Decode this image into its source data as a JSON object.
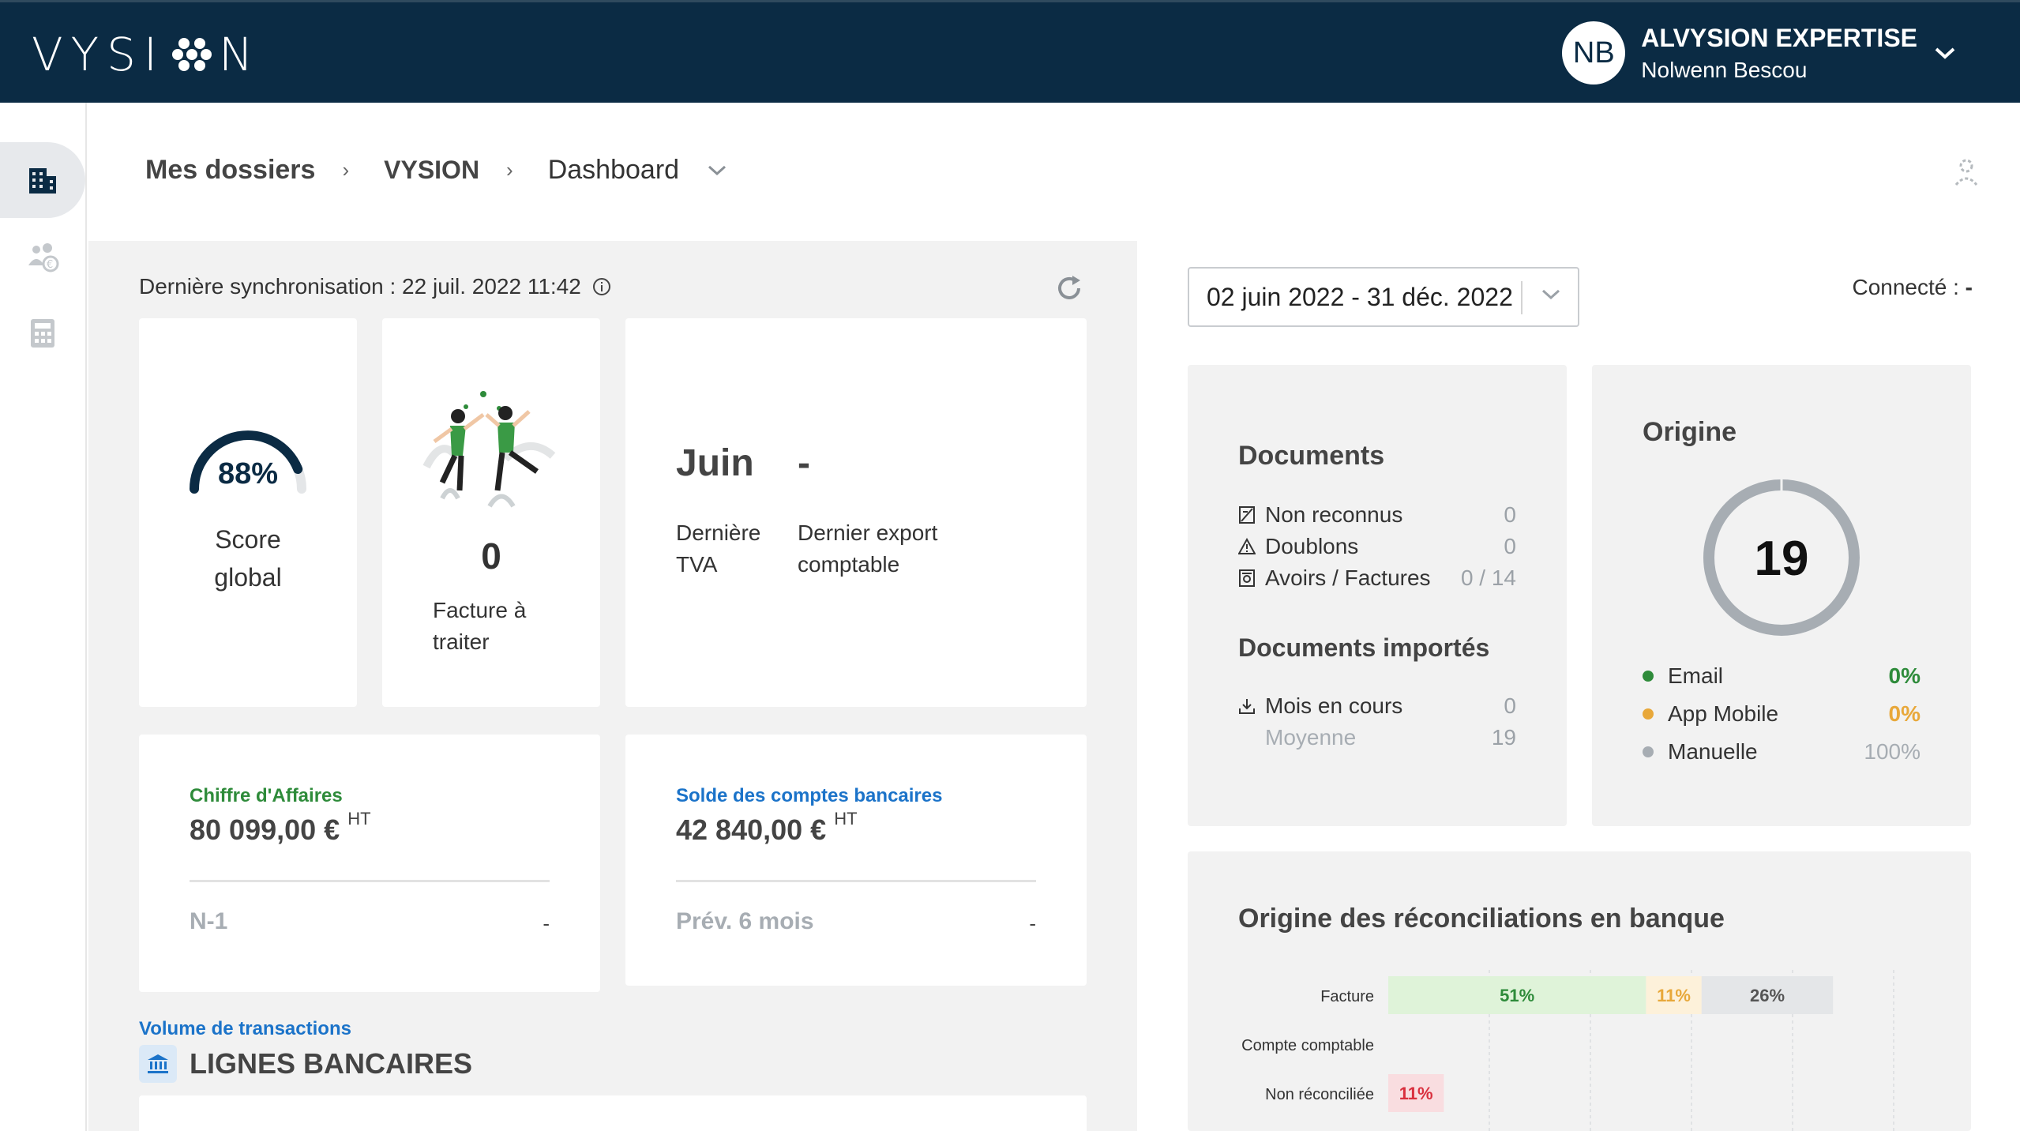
{
  "header": {
    "logo_text": "VYSION",
    "avatar_initials": "NB",
    "org_name": "ALVYSION EXPERTISE",
    "user_name": "Nolwenn Bescou",
    "colors": {
      "bar": "#0b2b44"
    }
  },
  "sidebar": {
    "items": [
      {
        "icon": "building-icon",
        "active": true
      },
      {
        "icon": "users-euro-icon",
        "active": false
      },
      {
        "icon": "calculator-icon",
        "active": false
      }
    ]
  },
  "breadcrumb": {
    "items": [
      "Mes dossiers",
      "VYSION",
      "Dashboard"
    ],
    "separator": "›"
  },
  "sync": {
    "label": "Dernière synchronisation : 22 juil. 2022 11:42"
  },
  "score": {
    "value": "88%",
    "percent": 88,
    "label_line1": "Score",
    "label_line2": "global"
  },
  "facture": {
    "count": "0",
    "label_line1": "Facture à",
    "label_line2": "traiter"
  },
  "tva": {
    "month": "Juin",
    "export_value": "-",
    "label_tva_line1": "Dernière",
    "label_tva_line2": "TVA",
    "label_export_line1": "Dernier export",
    "label_export_line2": "comptable"
  },
  "chiffre_affaires": {
    "title": "Chiffre d'Affaires",
    "value": "80 099,00 €",
    "suffix": "HT",
    "sub_label": "N-1",
    "sub_value": "-",
    "color": "#2e8b3a"
  },
  "solde": {
    "title": "Solde des comptes bancaires",
    "value": "42 840,00 €",
    "suffix": "HT",
    "sub_label": "Prév. 6 mois",
    "sub_value": "-",
    "color": "#1b73c9"
  },
  "volume": {
    "title": "Volume de transactions",
    "section": "LIGNES BANCAIRES"
  },
  "date_range": {
    "value": "02 juin 2022 - 31 déc. 2022"
  },
  "connected": {
    "label": "Connecté :",
    "value": "-"
  },
  "documents": {
    "title": "Documents",
    "rows": [
      {
        "icon": "unrecognized-doc-icon",
        "label": "Non reconnus",
        "value": "0"
      },
      {
        "icon": "warning-icon",
        "label": "Doublons",
        "value": "0"
      },
      {
        "icon": "credit-note-icon",
        "label": "Avoirs / Factures",
        "value": "0 / 14"
      }
    ],
    "imported_title": "Documents importés",
    "imported_rows": [
      {
        "icon": "download-icon",
        "label": "Mois en cours",
        "value": "0"
      },
      {
        "icon": "",
        "label": "Moyenne",
        "value": "19"
      }
    ]
  },
  "origine": {
    "title": "Origine",
    "total": "19",
    "rows": [
      {
        "label": "Email",
        "pct": "0%",
        "color": "#2e8b3a"
      },
      {
        "label": "App Mobile",
        "pct": "0%",
        "color": "#e8a83a"
      },
      {
        "label": "Manuelle",
        "pct": "100%",
        "color": "#a7adb3"
      }
    ]
  },
  "reconciliations": {
    "title": "Origine des réconciliations en banque"
  },
  "chart_data": {
    "type": "bar",
    "orientation": "horizontal",
    "stacked": true,
    "categories": [
      "Facture",
      "Compte comptable",
      "Non réconciliée"
    ],
    "series": [
      {
        "values": [
          51,
          0,
          0
        ],
        "labels": [
          "51%",
          "",
          ""
        ],
        "color": "#dff3d9",
        "text_color": "#2e8b3a"
      },
      {
        "values": [
          11,
          0,
          0
        ],
        "labels": [
          "11%",
          "",
          ""
        ],
        "color": "#fdf1da",
        "text_color": "#e8a83a"
      },
      {
        "values": [
          26,
          0,
          0
        ],
        "labels": [
          "26%",
          "",
          ""
        ],
        "color": "#e4e6e8",
        "text_color": "#555"
      },
      {
        "values": [
          0,
          0,
          11
        ],
        "labels": [
          "",
          "",
          "11%"
        ],
        "color": "#f9dde0",
        "text_color": "#d9303e"
      }
    ],
    "xlim": [
      0,
      100
    ],
    "grid": true
  }
}
